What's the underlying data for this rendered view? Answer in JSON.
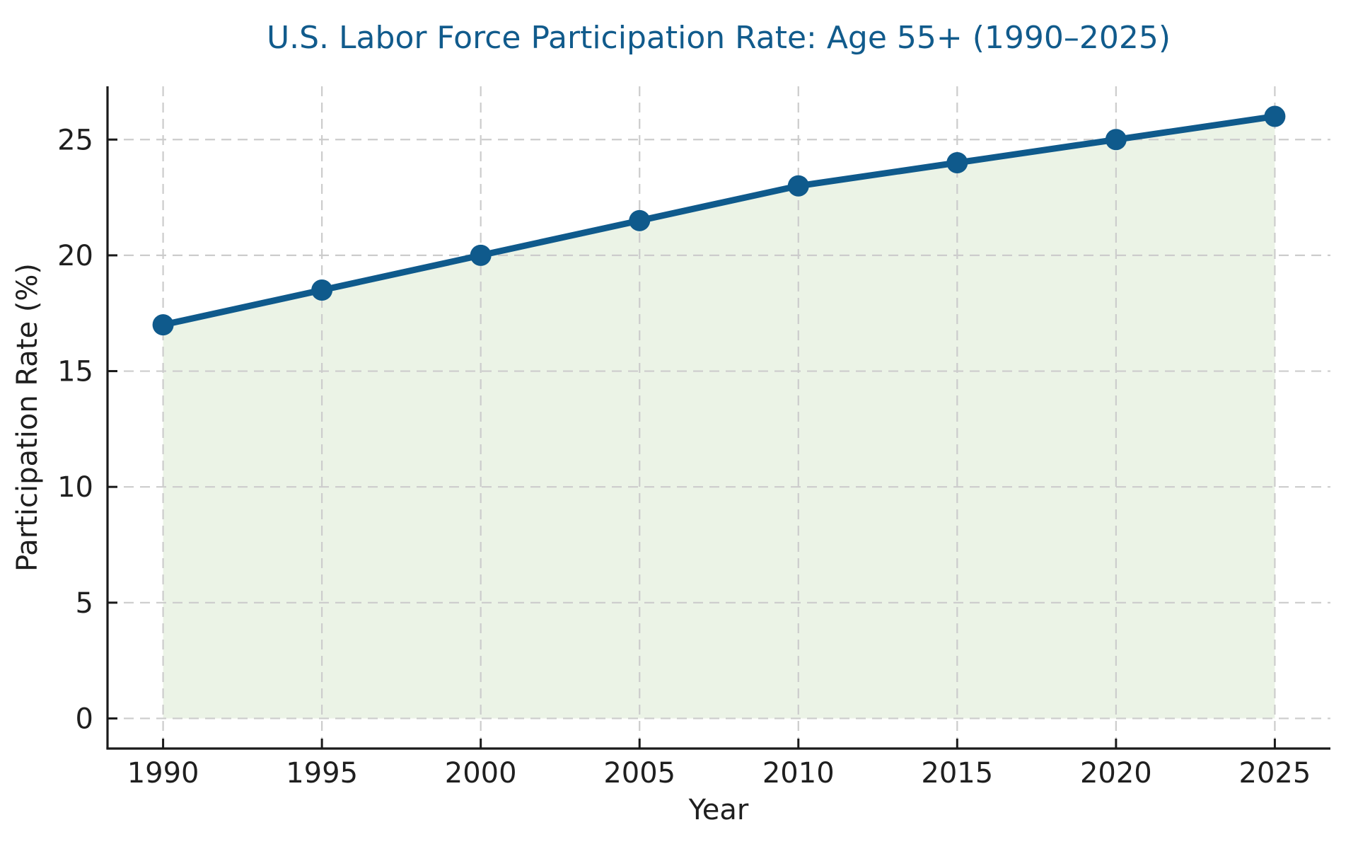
{
  "chart_data": {
    "type": "line",
    "title": "U.S. Labor Force Participation Rate: Age 55+ (1990–2025)",
    "xlabel": "Year",
    "ylabel": "Participation Rate (%)",
    "x": [
      1990,
      1995,
      2000,
      2005,
      2010,
      2015,
      2020,
      2025
    ],
    "values": [
      17,
      18.5,
      20,
      21.5,
      23,
      24,
      25,
      26
    ],
    "xticks": [
      1990,
      1995,
      2000,
      2005,
      2010,
      2015,
      2020,
      2025
    ],
    "yticks": [
      0,
      5,
      10,
      15,
      20,
      25
    ],
    "xlim": [
      1988.25,
      2026.75
    ],
    "ylim": [
      -1.3,
      27.3
    ],
    "grid": true,
    "grid_style": "dashed",
    "legend": "none",
    "area_fill_baseline": 0,
    "colors": {
      "line": "#0f5a8c",
      "marker": "#0f5a8c",
      "area_fill": "#ebf3e6",
      "grid": "#cccccc",
      "title": "#115b8c",
      "text": "#1f1f1f",
      "spine": "#1a1a1a",
      "background": "#ffffff"
    },
    "line_width": 9,
    "marker": "circle",
    "marker_radius": 15
  }
}
